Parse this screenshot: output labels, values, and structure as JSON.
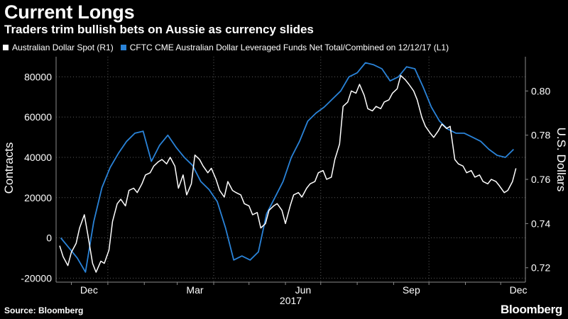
{
  "chart_data": {
    "type": "line",
    "title": "Current Longs",
    "subtitle": "Traders trim bullish bets on Aussie as currency slides",
    "x_ticks": [
      "Dec",
      "Mar",
      "Jun",
      "Sep",
      "Dec"
    ],
    "x_year_label": "2017",
    "left_axis": {
      "label": "Contracts",
      "ylim": [
        -22000,
        90000
      ],
      "ticks": [
        -20000,
        0,
        20000,
        40000,
        60000,
        80000
      ],
      "tick_labels": [
        "-20000",
        "0",
        "20000",
        "40000",
        "60000",
        "80000"
      ]
    },
    "right_axis": {
      "label": "U.S. Dollars",
      "ylim": [
        0.7135,
        0.8155
      ],
      "ticks": [
        0.72,
        0.74,
        0.76,
        0.78,
        0.8
      ],
      "tick_labels": [
        "0.72",
        "0.74",
        "0.76",
        "0.78",
        "0.80"
      ]
    },
    "series": [
      {
        "name": "Australian Dollar Spot  (R1)",
        "axis": "right",
        "color": "#ffffff",
        "x": [
          "2016-11-21",
          "2016-11-24",
          "2016-11-28",
          "2016-12-01",
          "2016-12-05",
          "2016-12-08",
          "2016-12-12",
          "2016-12-15",
          "2016-12-19",
          "2016-12-22",
          "2016-12-26",
          "2016-12-29",
          "2017-01-02",
          "2017-01-05",
          "2017-01-09",
          "2017-01-12",
          "2017-01-16",
          "2017-01-19",
          "2017-01-23",
          "2017-01-26",
          "2017-01-30",
          "2017-02-02",
          "2017-02-06",
          "2017-02-09",
          "2017-02-13",
          "2017-02-16",
          "2017-02-20",
          "2017-02-23",
          "2017-02-27",
          "2017-03-02",
          "2017-03-06",
          "2017-03-09",
          "2017-03-13",
          "2017-03-16",
          "2017-03-20",
          "2017-03-23",
          "2017-03-27",
          "2017-03-30",
          "2017-04-03",
          "2017-04-06",
          "2017-04-10",
          "2017-04-13",
          "2017-04-17",
          "2017-04-20",
          "2017-04-24",
          "2017-04-27",
          "2017-05-01",
          "2017-05-04",
          "2017-05-08",
          "2017-05-11",
          "2017-05-15",
          "2017-05-18",
          "2017-05-22",
          "2017-05-25",
          "2017-05-29",
          "2017-06-01",
          "2017-06-05",
          "2017-06-08",
          "2017-06-12",
          "2017-06-15",
          "2017-06-19",
          "2017-06-22",
          "2017-06-26",
          "2017-06-29",
          "2017-07-03",
          "2017-07-06",
          "2017-07-10",
          "2017-07-13",
          "2017-07-17",
          "2017-07-20",
          "2017-07-24",
          "2017-07-27",
          "2017-07-31",
          "2017-08-03",
          "2017-08-07",
          "2017-08-10",
          "2017-08-14",
          "2017-08-17",
          "2017-08-21",
          "2017-08-24",
          "2017-08-28",
          "2017-08-31",
          "2017-09-04",
          "2017-09-07",
          "2017-09-11",
          "2017-09-14",
          "2017-09-18",
          "2017-09-21",
          "2017-09-25",
          "2017-09-28",
          "2017-10-02",
          "2017-10-05",
          "2017-10-09",
          "2017-10-12",
          "2017-10-16",
          "2017-10-19",
          "2017-10-23",
          "2017-10-26",
          "2017-10-30",
          "2017-11-02",
          "2017-11-06",
          "2017-11-09",
          "2017-11-13",
          "2017-11-16",
          "2017-11-20",
          "2017-11-23",
          "2017-11-27",
          "2017-11-30",
          "2017-12-04",
          "2017-12-07",
          "2017-12-11",
          "2017-12-14"
        ],
        "values": [
          0.73,
          0.725,
          0.721,
          0.727,
          0.731,
          0.738,
          0.744,
          0.735,
          0.722,
          0.718,
          0.723,
          0.722,
          0.728,
          0.741,
          0.749,
          0.751,
          0.748,
          0.755,
          0.756,
          0.754,
          0.758,
          0.762,
          0.763,
          0.766,
          0.768,
          0.769,
          0.767,
          0.77,
          0.766,
          0.756,
          0.762,
          0.753,
          0.758,
          0.771,
          0.769,
          0.766,
          0.763,
          0.765,
          0.76,
          0.755,
          0.752,
          0.759,
          0.755,
          0.754,
          0.753,
          0.749,
          0.748,
          0.744,
          0.745,
          0.738,
          0.74,
          0.746,
          0.748,
          0.749,
          0.746,
          0.74,
          0.748,
          0.753,
          0.754,
          0.752,
          0.756,
          0.758,
          0.759,
          0.763,
          0.764,
          0.76,
          0.761,
          0.769,
          0.776,
          0.793,
          0.795,
          0.8,
          0.799,
          0.803,
          0.798,
          0.792,
          0.791,
          0.793,
          0.792,
          0.795,
          0.796,
          0.799,
          0.801,
          0.807,
          0.805,
          0.803,
          0.8,
          0.796,
          0.788,
          0.784,
          0.781,
          0.779,
          0.782,
          0.785,
          0.783,
          0.784,
          0.769,
          0.767,
          0.766,
          0.763,
          0.764,
          0.761,
          0.762,
          0.759,
          0.758,
          0.76,
          0.759,
          0.757,
          0.754,
          0.755,
          0.759,
          0.765
        ]
      },
      {
        "name": "CFTC CME Australian Dollar Leveraged Funds Net Total/Combined  on 12/12/17 (L1)",
        "axis": "left",
        "color": "#2a83d8",
        "x": [
          "2016-11-22",
          "2016-11-29",
          "2016-12-06",
          "2016-12-13",
          "2016-12-20",
          "2016-12-27",
          "2017-01-03",
          "2017-01-10",
          "2017-01-17",
          "2017-01-24",
          "2017-01-31",
          "2017-02-07",
          "2017-02-14",
          "2017-02-21",
          "2017-02-28",
          "2017-03-07",
          "2017-03-14",
          "2017-03-21",
          "2017-03-28",
          "2017-04-04",
          "2017-04-11",
          "2017-04-18",
          "2017-04-25",
          "2017-05-02",
          "2017-05-09",
          "2017-05-16",
          "2017-05-23",
          "2017-05-30",
          "2017-06-06",
          "2017-06-13",
          "2017-06-20",
          "2017-06-27",
          "2017-07-04",
          "2017-07-11",
          "2017-07-18",
          "2017-07-25",
          "2017-08-01",
          "2017-08-08",
          "2017-08-15",
          "2017-08-22",
          "2017-08-29",
          "2017-09-05",
          "2017-09-12",
          "2017-09-19",
          "2017-09-26",
          "2017-10-03",
          "2017-10-10",
          "2017-10-17",
          "2017-10-24",
          "2017-10-31",
          "2017-11-07",
          "2017-11-14",
          "2017-11-21",
          "2017-11-28",
          "2017-12-05",
          "2017-12-12"
        ],
        "values": [
          0,
          -5000,
          -10000,
          -17000,
          8000,
          25000,
          35000,
          42000,
          48000,
          52000,
          53000,
          38000,
          46000,
          51000,
          45000,
          40000,
          36000,
          28000,
          24000,
          18000,
          5000,
          -11000,
          -9000,
          -11000,
          -7000,
          12000,
          20000,
          28000,
          40000,
          48000,
          58000,
          62000,
          65000,
          69000,
          73000,
          80000,
          82000,
          87000,
          86000,
          84000,
          78000,
          80000,
          85000,
          84000,
          75000,
          65000,
          58000,
          54000,
          52000,
          52000,
          50000,
          48000,
          44000,
          41000,
          40000,
          44000
        ]
      }
    ]
  }
}
